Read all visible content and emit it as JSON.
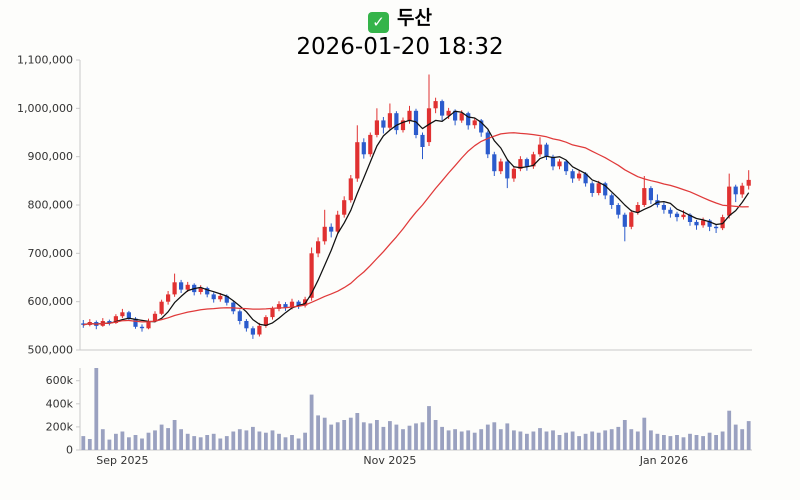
{
  "header": {
    "title": "두산",
    "timestamp": "2026-01-20 18:32",
    "check_glyph": "✓"
  },
  "chart_data": {
    "type": "candlestick_with_volume",
    "title": "두산",
    "subtitle": "2026-01-20 18:32",
    "value_unit": 1000,
    "price_axis": {
      "min": 500,
      "max": 1100,
      "ticks": [
        {
          "value": 500,
          "label": "500,000"
        },
        {
          "value": 600,
          "label": "600,000"
        },
        {
          "value": 700,
          "label": "700,000"
        },
        {
          "value": 800,
          "label": "800,000"
        },
        {
          "value": 900,
          "label": "900,000"
        },
        {
          "value": 1000,
          "label": "1,000,000"
        },
        {
          "value": 1100,
          "label": "1,100,000"
        }
      ]
    },
    "volume_axis": {
      "min": 0,
      "max": 710,
      "ticks": [
        {
          "value": 0,
          "label": "0"
        },
        {
          "value": 200,
          "label": "200k"
        },
        {
          "value": 400,
          "label": "400k"
        },
        {
          "value": 600,
          "label": "600k"
        }
      ]
    },
    "x_axis": {
      "labels": [
        {
          "label": "Sep 2025",
          "index": 6
        },
        {
          "label": "Nov 2025",
          "index": 47
        },
        {
          "label": "Jan 2026",
          "index": 89
        }
      ]
    },
    "colors": {
      "up": "#e03131",
      "down": "#2b5bcc",
      "volume": "#9aa1c0",
      "axis": "#c9c9c9",
      "tick_text": "#333333"
    },
    "moving_averages": [
      {
        "period": 5,
        "color": "#111111"
      },
      {
        "period": 25,
        "color": "#e03a3a"
      }
    ],
    "candles": [
      [
        555,
        562,
        546,
        552
      ],
      [
        552,
        564,
        549,
        558
      ],
      [
        558,
        561,
        543,
        550
      ],
      [
        550,
        566,
        548,
        560
      ],
      [
        560,
        563,
        551,
        556
      ],
      [
        556,
        574,
        554,
        570
      ],
      [
        570,
        585,
        566,
        578
      ],
      [
        578,
        581,
        560,
        565
      ],
      [
        565,
        568,
        544,
        548
      ],
      [
        548,
        553,
        538,
        545
      ],
      [
        545,
        565,
        543,
        560
      ],
      [
        560,
        580,
        557,
        575
      ],
      [
        575,
        604,
        572,
        600
      ],
      [
        600,
        622,
        594,
        615
      ],
      [
        615,
        658,
        610,
        640
      ],
      [
        640,
        645,
        618,
        625
      ],
      [
        625,
        641,
        620,
        635
      ],
      [
        635,
        638,
        613,
        620
      ],
      [
        620,
        634,
        615,
        628
      ],
      [
        628,
        631,
        609,
        615
      ],
      [
        615,
        619,
        598,
        605
      ],
      [
        605,
        618,
        600,
        612
      ],
      [
        612,
        615,
        592,
        598
      ],
      [
        598,
        602,
        574,
        580
      ],
      [
        580,
        584,
        553,
        560
      ],
      [
        560,
        564,
        538,
        545
      ],
      [
        545,
        549,
        523,
        532
      ],
      [
        532,
        556,
        528,
        550
      ],
      [
        550,
        572,
        546,
        568
      ],
      [
        568,
        590,
        563,
        585
      ],
      [
        585,
        601,
        580,
        595
      ],
      [
        595,
        599,
        581,
        588
      ],
      [
        588,
        606,
        584,
        600
      ],
      [
        600,
        603,
        585,
        592
      ],
      [
        592,
        610,
        588,
        605
      ],
      [
        608,
        712,
        602,
        700
      ],
      [
        700,
        733,
        692,
        725
      ],
      [
        725,
        790,
        718,
        755
      ],
      [
        755,
        762,
        733,
        745
      ],
      [
        745,
        788,
        740,
        780
      ],
      [
        780,
        818,
        774,
        810
      ],
      [
        810,
        862,
        805,
        855
      ],
      [
        855,
        965,
        848,
        930
      ],
      [
        930,
        938,
        896,
        905
      ],
      [
        905,
        950,
        900,
        945
      ],
      [
        945,
        1000,
        940,
        975
      ],
      [
        975,
        982,
        948,
        960
      ],
      [
        960,
        1010,
        955,
        990
      ],
      [
        990,
        994,
        946,
        955
      ],
      [
        955,
        981,
        950,
        975
      ],
      [
        975,
        1005,
        968,
        995
      ],
      [
        995,
        999,
        938,
        945
      ],
      [
        945,
        950,
        895,
        920
      ],
      [
        930,
        1070,
        922,
        1000
      ],
      [
        1000,
        1022,
        990,
        1015
      ],
      [
        1015,
        1018,
        975,
        985
      ],
      [
        985,
        1001,
        978,
        995
      ],
      [
        995,
        998,
        965,
        975
      ],
      [
        975,
        996,
        970,
        990
      ],
      [
        990,
        993,
        956,
        965
      ],
      [
        965,
        981,
        958,
        975
      ],
      [
        975,
        978,
        941,
        950
      ],
      [
        950,
        954,
        897,
        905
      ],
      [
        905,
        910,
        860,
        870
      ],
      [
        870,
        896,
        864,
        890
      ],
      [
        890,
        893,
        835,
        855
      ],
      [
        855,
        880,
        848,
        875
      ],
      [
        875,
        901,
        870,
        895
      ],
      [
        895,
        898,
        871,
        880
      ],
      [
        880,
        910,
        875,
        905
      ],
      [
        905,
        940,
        900,
        925
      ],
      [
        925,
        929,
        893,
        900
      ],
      [
        900,
        904,
        872,
        880
      ],
      [
        880,
        895,
        874,
        890
      ],
      [
        890,
        893,
        862,
        870
      ],
      [
        870,
        874,
        846,
        855
      ],
      [
        855,
        871,
        850,
        865
      ],
      [
        865,
        868,
        838,
        845
      ],
      [
        845,
        849,
        817,
        825
      ],
      [
        825,
        850,
        820,
        845
      ],
      [
        845,
        848,
        812,
        820
      ],
      [
        820,
        824,
        792,
        800
      ],
      [
        800,
        804,
        772,
        780
      ],
      [
        780,
        784,
        725,
        755
      ],
      [
        755,
        790,
        750,
        785
      ],
      [
        785,
        806,
        780,
        800
      ],
      [
        800,
        860,
        796,
        835
      ],
      [
        835,
        839,
        802,
        810
      ],
      [
        810,
        822,
        795,
        800
      ],
      [
        800,
        805,
        782,
        790
      ],
      [
        790,
        795,
        774,
        782
      ],
      [
        782,
        786,
        766,
        775
      ],
      [
        775,
        789,
        770,
        780
      ],
      [
        780,
        783,
        757,
        765
      ],
      [
        765,
        769,
        749,
        758
      ],
      [
        758,
        774,
        753,
        768
      ],
      [
        768,
        771,
        746,
        755
      ],
      [
        755,
        760,
        742,
        752
      ],
      [
        752,
        780,
        748,
        775
      ],
      [
        778,
        865,
        772,
        838
      ],
      [
        838,
        842,
        806,
        822
      ],
      [
        822,
        846,
        815,
        840
      ],
      [
        840,
        872,
        832,
        852
      ]
    ],
    "volumes": [
      120,
      95,
      710,
      180,
      90,
      140,
      160,
      110,
      130,
      100,
      150,
      170,
      220,
      190,
      260,
      180,
      140,
      120,
      110,
      130,
      140,
      100,
      120,
      160,
      180,
      170,
      200,
      160,
      150,
      170,
      140,
      110,
      130,
      100,
      150,
      480,
      300,
      280,
      220,
      240,
      260,
      280,
      320,
      240,
      230,
      260,
      200,
      250,
      220,
      180,
      210,
      230,
      240,
      380,
      260,
      200,
      170,
      180,
      160,
      170,
      150,
      180,
      220,
      240,
      180,
      230,
      170,
      160,
      140,
      160,
      190,
      160,
      170,
      130,
      150,
      160,
      120,
      140,
      160,
      150,
      170,
      180,
      200,
      260,
      180,
      160,
      280,
      170,
      140,
      130,
      120,
      130,
      110,
      140,
      130,
      120,
      150,
      130,
      160,
      340,
      220,
      180,
      250
    ]
  }
}
